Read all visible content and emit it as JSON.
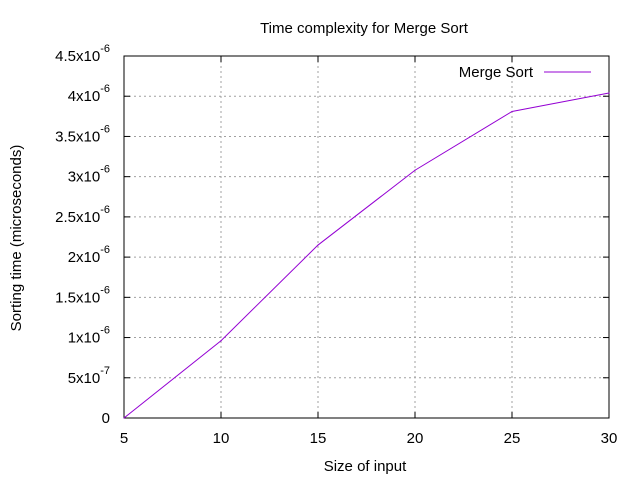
{
  "chart_data": {
    "type": "line",
    "title": "Time complexity for Merge Sort",
    "xlabel": "Size of input",
    "ylabel": "Sorting time (microseconds)",
    "xlim": [
      5,
      30
    ],
    "ylim": [
      0,
      4.5e-06
    ],
    "x_ticks": [
      5,
      10,
      15,
      20,
      25,
      30
    ],
    "y_ticks": [
      {
        "value": 0,
        "mant": "0",
        "exp": ""
      },
      {
        "value": 5e-07,
        "mant": "5x10",
        "exp": "-7"
      },
      {
        "value": 1e-06,
        "mant": "1x10",
        "exp": "-6"
      },
      {
        "value": 1.5e-06,
        "mant": "1.5x10",
        "exp": "-6"
      },
      {
        "value": 2e-06,
        "mant": "2x10",
        "exp": "-6"
      },
      {
        "value": 2.5e-06,
        "mant": "2.5x10",
        "exp": "-6"
      },
      {
        "value": 3e-06,
        "mant": "3x10",
        "exp": "-6"
      },
      {
        "value": 3.5e-06,
        "mant": "3.5x10",
        "exp": "-6"
      },
      {
        "value": 4e-06,
        "mant": "4x10",
        "exp": "-6"
      },
      {
        "value": 4.5e-06,
        "mant": "4.5x10",
        "exp": "-6"
      }
    ],
    "grid": true,
    "legend_position": "top-right",
    "series": [
      {
        "name": "Merge Sort",
        "color": "#9400d3",
        "x": [
          5,
          10,
          15,
          20,
          25,
          30
        ],
        "y": [
          0,
          9.6e-07,
          2.15e-06,
          3.08e-06,
          3.81e-06,
          4.04e-06
        ]
      }
    ]
  }
}
